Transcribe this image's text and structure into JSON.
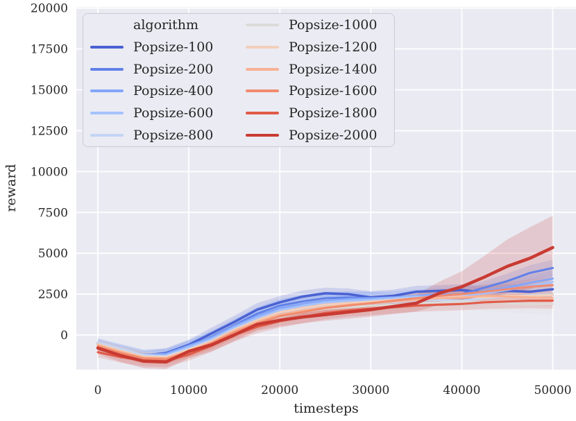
{
  "figure": {
    "bg": "#ffffff",
    "plot_bg": "#eaeaf2",
    "grid_color": "#ffffff",
    "text_color": "#262626"
  },
  "chart_data": {
    "type": "line",
    "title": "",
    "xlabel": "timesteps",
    "ylabel": "reward",
    "legend_title": "algorithm",
    "legend_position": "upper left",
    "grid": true,
    "band_alpha": 0.18,
    "xlim": [
      -2365,
      52555
    ],
    "ylim": [
      -2120,
      20070
    ],
    "xticks": [
      0,
      10000,
      20000,
      30000,
      40000,
      50000
    ],
    "yticks": [
      0,
      2500,
      5000,
      7500,
      10000,
      12500,
      15000,
      17500,
      20000
    ],
    "x": [
      0,
      2500,
      5000,
      7500,
      10000,
      12500,
      15000,
      17500,
      20000,
      22500,
      25000,
      27500,
      30000,
      32500,
      35000,
      37500,
      40000,
      42500,
      45000,
      47500,
      50000
    ],
    "series": [
      {
        "name": "Popsize-100",
        "color": "#4961d2",
        "lw": 3.5,
        "values": [
          -520,
          -900,
          -1250,
          -1100,
          -600,
          100,
          800,
          1550,
          2000,
          2350,
          2550,
          2500,
          2300,
          2400,
          2650,
          2700,
          2750,
          2600,
          2700,
          2650,
          2800
        ],
        "band": [
          250,
          280,
          300,
          300,
          320,
          350,
          380,
          400,
          390,
          370,
          350,
          350,
          380,
          380,
          360,
          350,
          360,
          380,
          410,
          430,
          460
        ]
      },
      {
        "name": "Popsize-200",
        "color": "#6181e8",
        "lw": 3,
        "values": [
          -560,
          -950,
          -1300,
          -1200,
          -700,
          -100,
          600,
          1300,
          1800,
          2050,
          2250,
          2300,
          2250,
          2150,
          2250,
          2350,
          2500,
          2900,
          3300,
          3800,
          4100
        ],
        "band": [
          280,
          300,
          320,
          320,
          340,
          360,
          380,
          400,
          400,
          390,
          380,
          380,
          390,
          390,
          380,
          380,
          390,
          420,
          450,
          480,
          500
        ]
      },
      {
        "name": "Popsize-400",
        "color": "#84a6fa",
        "lw": 3,
        "values": [
          -480,
          -850,
          -1200,
          -1150,
          -650,
          -150,
          550,
          1150,
          1650,
          1900,
          2100,
          2200,
          2250,
          2300,
          2400,
          2500,
          2450,
          2700,
          2900,
          3200,
          3450
        ],
        "band": [
          280,
          300,
          320,
          320,
          340,
          360,
          380,
          400,
          400,
          390,
          380,
          380,
          390,
          390,
          380,
          380,
          390,
          410,
          430,
          460,
          490
        ]
      },
      {
        "name": "Popsize-600",
        "color": "#a4c2fe",
        "lw": 3,
        "values": [
          -500,
          -880,
          -1280,
          -1250,
          -750,
          -250,
          450,
          1050,
          1500,
          1800,
          2000,
          2100,
          2150,
          2250,
          2350,
          2300,
          2400,
          2550,
          2750,
          3000,
          3250
        ],
        "band": [
          300,
          320,
          350,
          350,
          380,
          430,
          520,
          650,
          700,
          640,
          550,
          500,
          460,
          430,
          410,
          410,
          430,
          450,
          480,
          500,
          520
        ]
      },
      {
        "name": "Popsize-800",
        "color": "#c3d5f4",
        "lw": 3,
        "values": [
          -450,
          -820,
          -1220,
          -1300,
          -850,
          -350,
          350,
          900,
          1300,
          1550,
          1750,
          1850,
          1950,
          2000,
          2100,
          2150,
          2100,
          2250,
          2350,
          2450,
          2500
        ],
        "band": [
          280,
          300,
          320,
          320,
          340,
          360,
          380,
          400,
          400,
          390,
          380,
          380,
          390,
          390,
          380,
          380,
          390,
          410,
          430,
          460,
          490
        ]
      },
      {
        "name": "Popsize-1000",
        "color": "#dcdbd9",
        "lw": 3,
        "values": [
          -600,
          -1000,
          -1350,
          -1400,
          -950,
          -450,
          250,
          750,
          1100,
          1400,
          1600,
          1700,
          1800,
          1850,
          1950,
          2000,
          2050,
          2000,
          1950,
          1900,
          1900
        ],
        "band": [
          300,
          320,
          350,
          350,
          380,
          400,
          430,
          450,
          450,
          450,
          430,
          420,
          420,
          430,
          450,
          460,
          490,
          520,
          560,
          610,
          660
        ]
      },
      {
        "name": "Popsize-1200",
        "color": "#f3cfba",
        "lw": 3,
        "values": [
          -550,
          -950,
          -1320,
          -1350,
          -900,
          -380,
          320,
          900,
          1400,
          1650,
          1850,
          1950,
          2050,
          2150,
          2250,
          2300,
          2350,
          2300,
          2400,
          2400,
          2450
        ],
        "band": [
          280,
          300,
          320,
          320,
          340,
          360,
          380,
          400,
          400,
          390,
          380,
          380,
          390,
          390,
          380,
          380,
          390,
          410,
          430,
          460,
          490
        ]
      },
      {
        "name": "Popsize-1400",
        "color": "#f7b194",
        "lw": 3,
        "values": [
          -620,
          -1020,
          -1380,
          -1420,
          -980,
          -450,
          250,
          800,
          1250,
          1500,
          1700,
          1850,
          1950,
          2050,
          2150,
          2250,
          2300,
          2400,
          2350,
          2300,
          2250
        ],
        "band": [
          280,
          300,
          320,
          320,
          340,
          360,
          380,
          400,
          400,
          390,
          380,
          380,
          390,
          390,
          380,
          380,
          390,
          410,
          430,
          460,
          490
        ]
      },
      {
        "name": "Popsize-1600",
        "color": "#f08b6e",
        "lw": 3,
        "values": [
          -700,
          -1100,
          -1430,
          -1480,
          -1050,
          -500,
          150,
          700,
          1150,
          1400,
          1650,
          1800,
          1950,
          2100,
          2250,
          2400,
          2500,
          2650,
          2800,
          2950,
          3050
        ],
        "band": [
          280,
          300,
          320,
          320,
          340,
          360,
          380,
          400,
          400,
          390,
          380,
          380,
          390,
          390,
          380,
          380,
          390,
          410,
          430,
          460,
          490
        ]
      },
      {
        "name": "Popsize-1800",
        "color": "#e05a47",
        "lw": 3,
        "values": [
          -1050,
          -1350,
          -1550,
          -1600,
          -1200,
          -650,
          0,
          500,
          850,
          1100,
          1350,
          1500,
          1600,
          1700,
          1800,
          1850,
          1900,
          2000,
          2050,
          2100,
          2100
        ],
        "band": [
          320,
          340,
          360,
          360,
          370,
          380,
          390,
          400,
          400,
          390,
          380,
          380,
          390,
          390,
          380,
          380,
          390,
          410,
          430,
          460,
          490
        ]
      },
      {
        "name": "Popsize-2000",
        "color": "#c93a32",
        "lw": 4.5,
        "values": [
          -800,
          -1250,
          -1600,
          -1650,
          -1000,
          -600,
          0,
          650,
          900,
          1100,
          1250,
          1400,
          1550,
          1750,
          1950,
          2550,
          2950,
          3550,
          4200,
          4700,
          5350
        ],
        "band": [
          350,
          400,
          430,
          430,
          420,
          400,
          380,
          380,
          380,
          380,
          380,
          400,
          430,
          460,
          520,
          700,
          950,
          1300,
          1650,
          1900,
          1950
        ]
      }
    ]
  }
}
